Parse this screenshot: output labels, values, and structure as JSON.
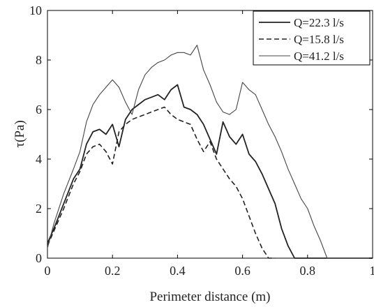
{
  "chart_data": {
    "type": "line",
    "xlabel": "Perimeter distance (m)",
    "ylabel": "τ(Pa)",
    "xlim": [
      0,
      1
    ],
    "ylim": [
      0,
      10
    ],
    "xticks": [
      0,
      0.2,
      0.4,
      0.6,
      0.8,
      1
    ],
    "xtick_labels": [
      "0",
      "0.2",
      "0.4",
      "0.6",
      "0.8",
      "1"
    ],
    "yticks": [
      0,
      2,
      4,
      6,
      8,
      10
    ],
    "ytick_labels": [
      "0",
      "2",
      "4",
      "6",
      "8",
      "10"
    ],
    "grid": false,
    "legend_position": "top-right",
    "series": [
      {
        "name": "Q=22.3 l/s",
        "style": "solid",
        "color": "#222222",
        "x": [
          0,
          0.02,
          0.05,
          0.08,
          0.1,
          0.12,
          0.14,
          0.16,
          0.18,
          0.2,
          0.22,
          0.24,
          0.26,
          0.28,
          0.3,
          0.32,
          0.34,
          0.36,
          0.38,
          0.4,
          0.42,
          0.44,
          0.46,
          0.48,
          0.5,
          0.52,
          0.54,
          0.56,
          0.58,
          0.6,
          0.62,
          0.64,
          0.66,
          0.68,
          0.7,
          0.72,
          0.74,
          0.76,
          0.8,
          0.9,
          1.0
        ],
        "y": [
          0.6,
          1.2,
          2.2,
          3.2,
          3.6,
          4.6,
          5.1,
          5.2,
          5.0,
          5.4,
          4.5,
          5.6,
          6.0,
          6.2,
          6.4,
          6.5,
          6.6,
          6.4,
          6.8,
          7.0,
          6.1,
          6.0,
          5.8,
          5.4,
          4.8,
          4.2,
          5.5,
          4.9,
          4.6,
          5.0,
          4.2,
          3.9,
          3.4,
          2.8,
          2.2,
          1.2,
          0.5,
          0.0,
          0.0,
          0.0,
          0.0
        ]
      },
      {
        "name": "Q=15.8 l/s",
        "style": "dashed",
        "color": "#222222",
        "x": [
          0,
          0.02,
          0.05,
          0.08,
          0.1,
          0.12,
          0.14,
          0.16,
          0.18,
          0.2,
          0.22,
          0.24,
          0.26,
          0.28,
          0.3,
          0.32,
          0.34,
          0.36,
          0.38,
          0.4,
          0.42,
          0.44,
          0.46,
          0.48,
          0.5,
          0.52,
          0.54,
          0.56,
          0.58,
          0.6,
          0.62,
          0.64,
          0.66,
          0.68,
          0.7
        ],
        "y": [
          0.5,
          1.1,
          2.0,
          3.0,
          3.5,
          4.2,
          4.5,
          4.6,
          4.3,
          3.8,
          5.1,
          5.4,
          5.6,
          5.7,
          5.8,
          5.9,
          6.0,
          6.1,
          5.8,
          5.6,
          5.5,
          5.4,
          4.8,
          4.3,
          4.7,
          4.0,
          3.6,
          3.2,
          2.9,
          2.4,
          1.7,
          1.0,
          0.4,
          0.0,
          0.0
        ]
      },
      {
        "name": "Q=41.2 l/s",
        "style": "solid-thin",
        "color": "#444444",
        "x": [
          0,
          0.02,
          0.05,
          0.08,
          0.1,
          0.12,
          0.14,
          0.16,
          0.18,
          0.2,
          0.22,
          0.24,
          0.26,
          0.28,
          0.3,
          0.32,
          0.34,
          0.36,
          0.38,
          0.4,
          0.42,
          0.44,
          0.46,
          0.48,
          0.5,
          0.52,
          0.54,
          0.56,
          0.58,
          0.6,
          0.62,
          0.64,
          0.66,
          0.68,
          0.7,
          0.72,
          0.74,
          0.76,
          0.78,
          0.8,
          0.82,
          0.84,
          0.86,
          0.88,
          0.9,
          1.0
        ],
        "y": [
          0.4,
          1.4,
          2.6,
          3.6,
          4.3,
          5.5,
          6.2,
          6.6,
          6.9,
          7.2,
          6.9,
          6.3,
          5.8,
          6.8,
          7.4,
          7.7,
          7.9,
          8.0,
          8.2,
          8.3,
          8.3,
          8.2,
          8.6,
          7.6,
          7.0,
          6.3,
          5.9,
          5.8,
          6.0,
          7.1,
          6.8,
          6.6,
          6.0,
          5.4,
          4.9,
          4.3,
          3.6,
          3.0,
          2.4,
          2.0,
          1.3,
          0.7,
          0.0,
          0.0,
          0.0,
          0.0
        ]
      }
    ]
  }
}
